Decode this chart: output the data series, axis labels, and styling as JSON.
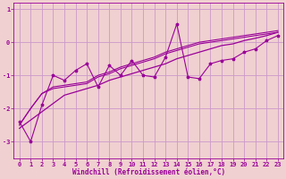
{
  "xlabel": "Windchill (Refroidissement éolien,°C)",
  "ylabel": "",
  "bg_color": "#f0d0d0",
  "grid_color": "#cc99cc",
  "line_color": "#990099",
  "xlim": [
    -0.5,
    23.5
  ],
  "ylim": [
    -3.5,
    1.2
  ],
  "xticks": [
    0,
    1,
    2,
    3,
    4,
    5,
    6,
    7,
    8,
    9,
    10,
    11,
    12,
    13,
    14,
    15,
    16,
    17,
    18,
    19,
    20,
    21,
    22,
    23
  ],
  "yticks": [
    1,
    0,
    -1,
    -2,
    -3
  ],
  "windchill_x": [
    0,
    1,
    2,
    3,
    4,
    5,
    6,
    7,
    8,
    9,
    10,
    11,
    12,
    13,
    14,
    15,
    16,
    17,
    18,
    19,
    20,
    21,
    22,
    23
  ],
  "scatter_y": [
    -2.4,
    -3.0,
    -1.9,
    -1.0,
    -1.15,
    -0.85,
    -0.65,
    -1.35,
    -0.7,
    -1.0,
    -0.55,
    -1.0,
    -1.05,
    -0.45,
    0.55,
    -1.05,
    -1.1,
    -0.65,
    -0.55,
    -0.5,
    -0.3,
    -0.2,
    0.05,
    0.2
  ],
  "line1_y": [
    -2.5,
    -2.0,
    -1.55,
    -1.35,
    -1.3,
    -1.25,
    -1.2,
    -1.0,
    -0.9,
    -0.75,
    -0.65,
    -0.55,
    -0.45,
    -0.3,
    -0.2,
    -0.1,
    0.0,
    0.05,
    0.1,
    0.15,
    0.2,
    0.25,
    0.3,
    0.35
  ],
  "line2_y": [
    -2.5,
    -2.0,
    -1.55,
    -1.4,
    -1.35,
    -1.3,
    -1.25,
    -1.05,
    -0.95,
    -0.8,
    -0.7,
    -0.6,
    -0.5,
    -0.35,
    -0.25,
    -0.15,
    -0.05,
    0.0,
    0.05,
    0.1,
    0.15,
    0.2,
    0.25,
    0.3
  ],
  "reg_y": [
    -2.6,
    -2.35,
    -2.1,
    -1.85,
    -1.6,
    -1.5,
    -1.4,
    -1.3,
    -1.15,
    -1.05,
    -0.95,
    -0.85,
    -0.75,
    -0.65,
    -0.5,
    -0.4,
    -0.3,
    -0.2,
    -0.1,
    -0.05,
    0.05,
    0.12,
    0.2,
    0.3
  ]
}
